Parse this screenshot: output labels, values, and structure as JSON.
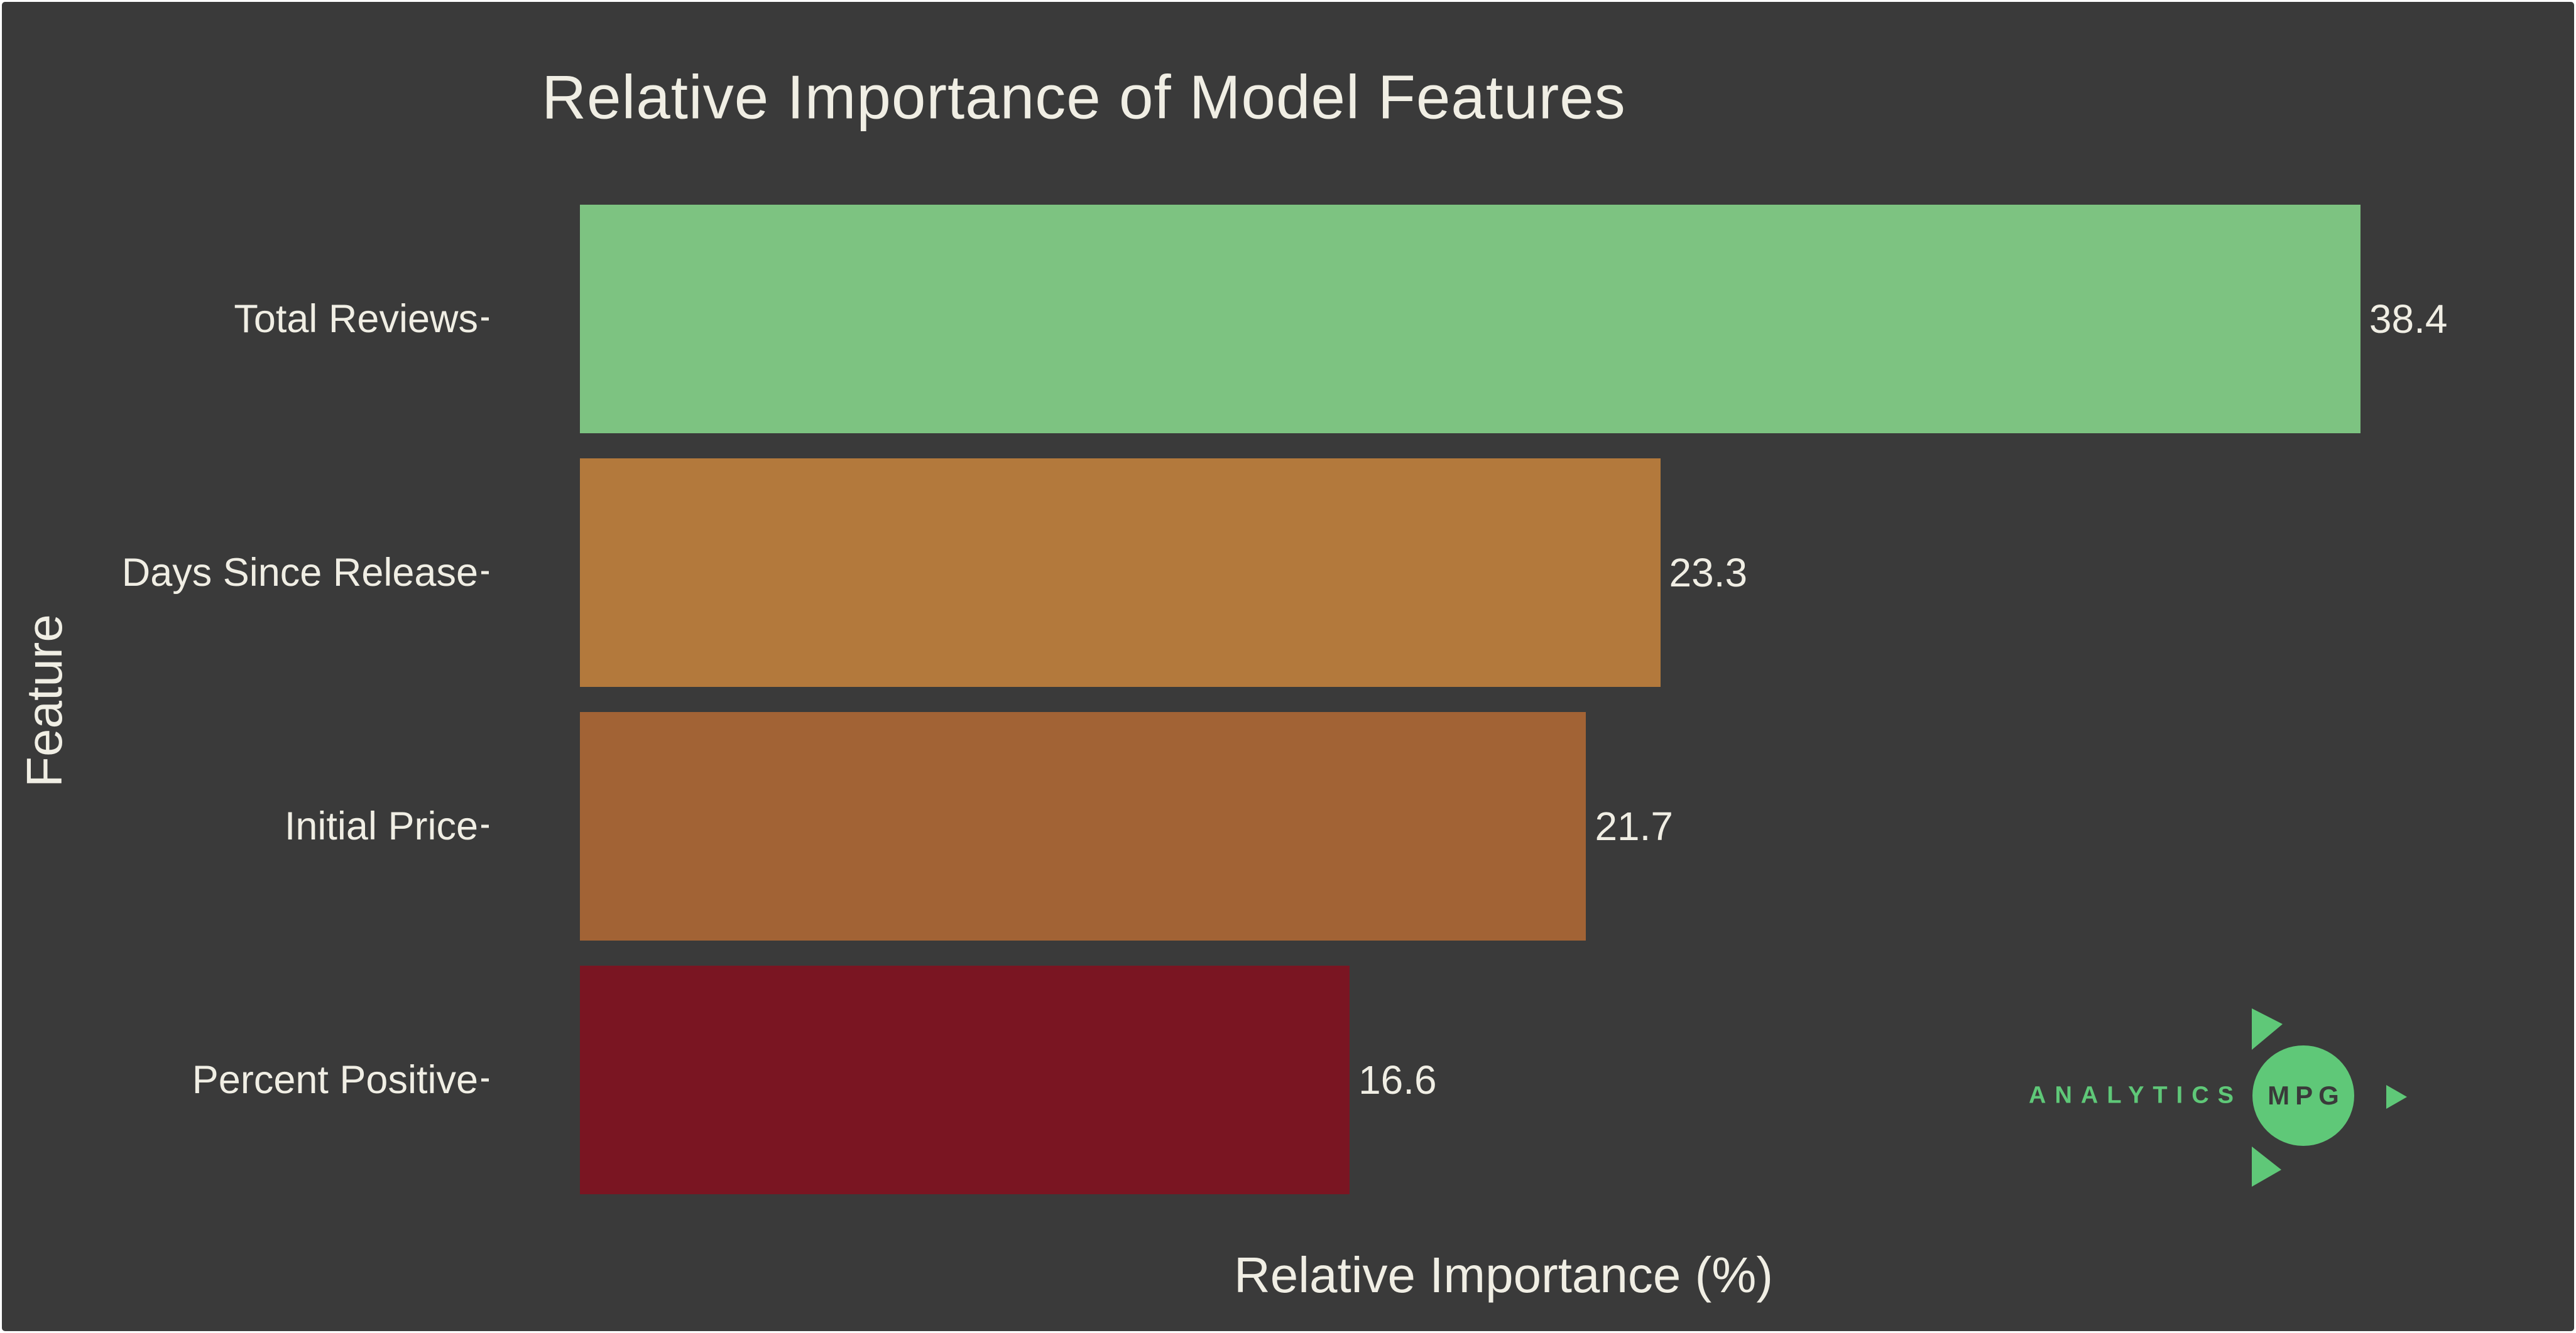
{
  "chart_data": {
    "type": "bar",
    "orientation": "horizontal",
    "title": "Relative Importance of Model Features",
    "xlabel": "Relative Importance (%)",
    "ylabel": "Feature",
    "categories": [
      "Total Reviews",
      "Days Since Release",
      "Initial Price",
      "Percent Positive"
    ],
    "values": [
      38.4,
      23.3,
      21.7,
      16.6
    ],
    "value_labels": [
      "38.4",
      "23.3",
      "21.7",
      "16.6"
    ],
    "bar_colors": [
      "#7dc381",
      "#b3793c",
      "#a26335",
      "#7a1522"
    ],
    "x_range": [
      0,
      40.5
    ],
    "grid": false,
    "legend": "none"
  },
  "colors": {
    "background": "#3a3a3a",
    "text": "#f0eee4",
    "frame_border": "#ffffff",
    "accent_green": "#5fc878"
  },
  "branding": {
    "wordmark": "ANALYTICS",
    "badge": "MPG"
  }
}
